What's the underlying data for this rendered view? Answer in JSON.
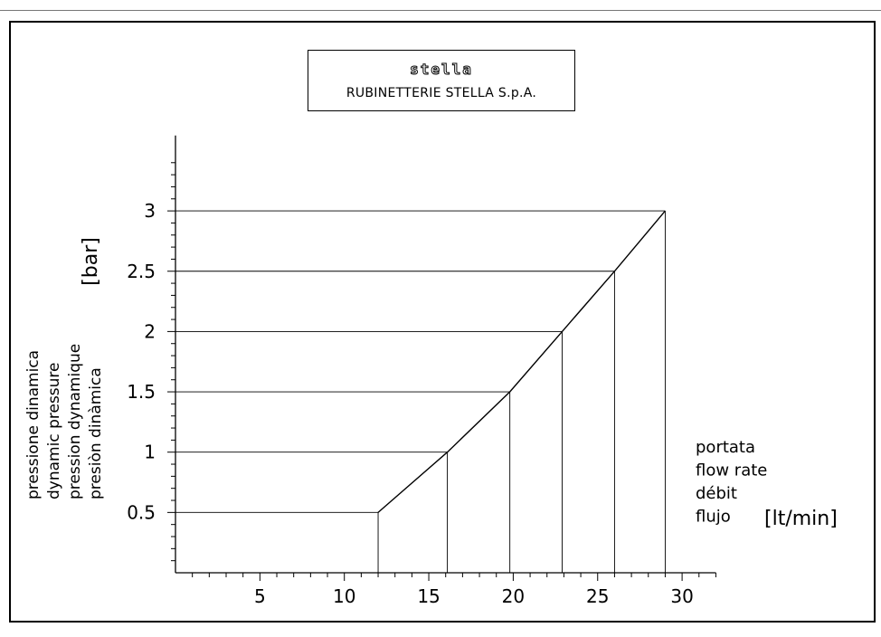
{
  "header": {
    "logo_text": "stella",
    "company": "RUBINETTERIE  STELLA  S.p.A."
  },
  "chart_data": {
    "type": "line",
    "title": "",
    "x_axis_labels": [
      "portata",
      "flow rate",
      "débit",
      "flujo"
    ],
    "x_unit": "[lt/min]",
    "y_axis_labels": [
      "pressione dinamica",
      "dynamic pressure",
      "pression dynamique",
      "presiòn dinàmica"
    ],
    "y_unit": "[bar]",
    "x_ticks": [
      5,
      10,
      15,
      20,
      25,
      30
    ],
    "y_ticks": [
      0.5,
      1,
      1.5,
      2,
      2.5,
      3
    ],
    "x_tick_labels": [
      "5",
      "10",
      "15",
      "20",
      "25",
      "30"
    ],
    "y_tick_labels": [
      "0.5",
      "1",
      "1.5",
      "2",
      "2.5",
      "3"
    ],
    "xlim": [
      0,
      32
    ],
    "ylim": [
      0,
      3.4
    ],
    "series": [
      {
        "x": [
          12,
          16.1,
          19.8,
          22.9,
          26,
          29
        ],
        "y": [
          0.5,
          1,
          1.5,
          2,
          2.5,
          3
        ]
      }
    ],
    "reference_lines": true,
    "grid": false
  }
}
